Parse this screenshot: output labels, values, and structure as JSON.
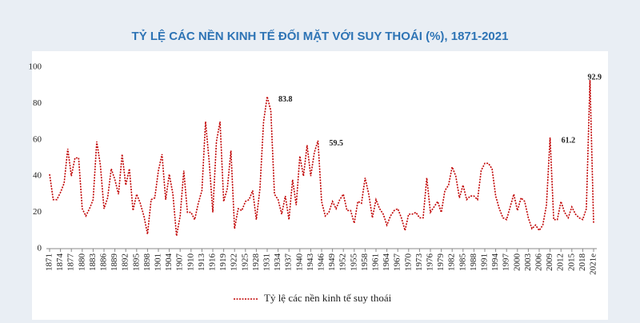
{
  "chart_data": {
    "type": "line",
    "title": "TỶ LỆ CÁC NỀN KINH TẾ ĐỐI MẶT VỚI SUY THOÁI (%), 1871-2021",
    "x": [
      1871,
      1872,
      1873,
      1874,
      1875,
      1876,
      1877,
      1878,
      1879,
      1880,
      1881,
      1882,
      1883,
      1884,
      1885,
      1886,
      1887,
      1888,
      1889,
      1890,
      1891,
      1892,
      1893,
      1894,
      1895,
      1896,
      1897,
      1898,
      1899,
      1900,
      1901,
      1902,
      1903,
      1904,
      1905,
      1906,
      1907,
      1908,
      1909,
      1910,
      1911,
      1912,
      1913,
      1914,
      1915,
      1916,
      1917,
      1918,
      1919,
      1920,
      1921,
      1922,
      1923,
      1924,
      1925,
      1926,
      1927,
      1928,
      1929,
      1930,
      1931,
      1932,
      1933,
      1934,
      1935,
      1936,
      1937,
      1938,
      1939,
      1940,
      1941,
      1942,
      1943,
      1944,
      1945,
      1946,
      1947,
      1948,
      1949,
      1950,
      1951,
      1952,
      1953,
      1954,
      1955,
      1956,
      1957,
      1958,
      1959,
      1960,
      1961,
      1962,
      1963,
      1964,
      1965,
      1966,
      1967,
      1968,
      1969,
      1970,
      1971,
      1972,
      1973,
      1974,
      1975,
      1976,
      1977,
      1978,
      1979,
      1980,
      1981,
      1982,
      1983,
      1984,
      1985,
      1986,
      1987,
      1988,
      1989,
      1990,
      1991,
      1992,
      1993,
      1994,
      1995,
      1996,
      1997,
      1998,
      1999,
      2000,
      2001,
      2002,
      2003,
      2004,
      2005,
      2006,
      2007,
      2008,
      2009,
      2010,
      2011,
      2012,
      2013,
      2014,
      2015,
      2016,
      2017,
      2018,
      2019,
      2020,
      2021
    ],
    "series": [
      {
        "name": "Tỷ lệ các nền kinh tế suy thoái",
        "color": "#c00000",
        "values": [
          41,
          27,
          27,
          31,
          36,
          55,
          40,
          50,
          50,
          22,
          18,
          22,
          27,
          59,
          46,
          22,
          28,
          44,
          38,
          30,
          52,
          35,
          44,
          21,
          30,
          25,
          18,
          8,
          27,
          28,
          43,
          52,
          27,
          41,
          30,
          7,
          18,
          43,
          20,
          20,
          16,
          25,
          32,
          70,
          48,
          20,
          59,
          70,
          26,
          33,
          54,
          11,
          22,
          21,
          26,
          27,
          32,
          16,
          33,
          70,
          83.8,
          76,
          30,
          27,
          19,
          29,
          16,
          38,
          24,
          51,
          40,
          57,
          40,
          53,
          59.5,
          26,
          18,
          20,
          26,
          22,
          27,
          30,
          21,
          21,
          14,
          26,
          25,
          39,
          30,
          17,
          27,
          22,
          19,
          13,
          18,
          21,
          22,
          17,
          10,
          19,
          19,
          20,
          17,
          17,
          39,
          20,
          23,
          26,
          20,
          32,
          35,
          45,
          40,
          28,
          35,
          27,
          29,
          29,
          27,
          43,
          47,
          47,
          44,
          29,
          22,
          17,
          16,
          23,
          30,
          21,
          28,
          26,
          17,
          11,
          13,
          10,
          13,
          24,
          61.2,
          16,
          16,
          26,
          20,
          17,
          23,
          19,
          17,
          16,
          22,
          92.9,
          14
        ]
      }
    ],
    "annotations": [
      {
        "text": "83.8",
        "x": 1931
      },
      {
        "text": "59.5",
        "x": 1945
      },
      {
        "text": "61.2",
        "x": 2009
      },
      {
        "text": "92.9",
        "x": 2020
      }
    ],
    "xlim": [
      1871,
      2021
    ],
    "xticks": [
      1871,
      1874,
      1877,
      1880,
      1883,
      1886,
      1889,
      1892,
      1895,
      1898,
      1901,
      1904,
      1907,
      1910,
      1913,
      1916,
      1919,
      1922,
      1925,
      1928,
      1931,
      1934,
      1937,
      1940,
      1943,
      1946,
      1949,
      1952,
      1955,
      1958,
      1961,
      1964,
      1967,
      1970,
      1973,
      1976,
      1979,
      1982,
      1985,
      1988,
      1991,
      1994,
      1997,
      2000,
      2003,
      2006,
      2009,
      2012,
      2015,
      2018,
      {
        "value": 2021,
        "label": "2021e"
      }
    ],
    "ylim": [
      0,
      100
    ],
    "yticks": [
      0,
      20,
      40,
      60,
      80,
      100
    ],
    "grid": false
  }
}
